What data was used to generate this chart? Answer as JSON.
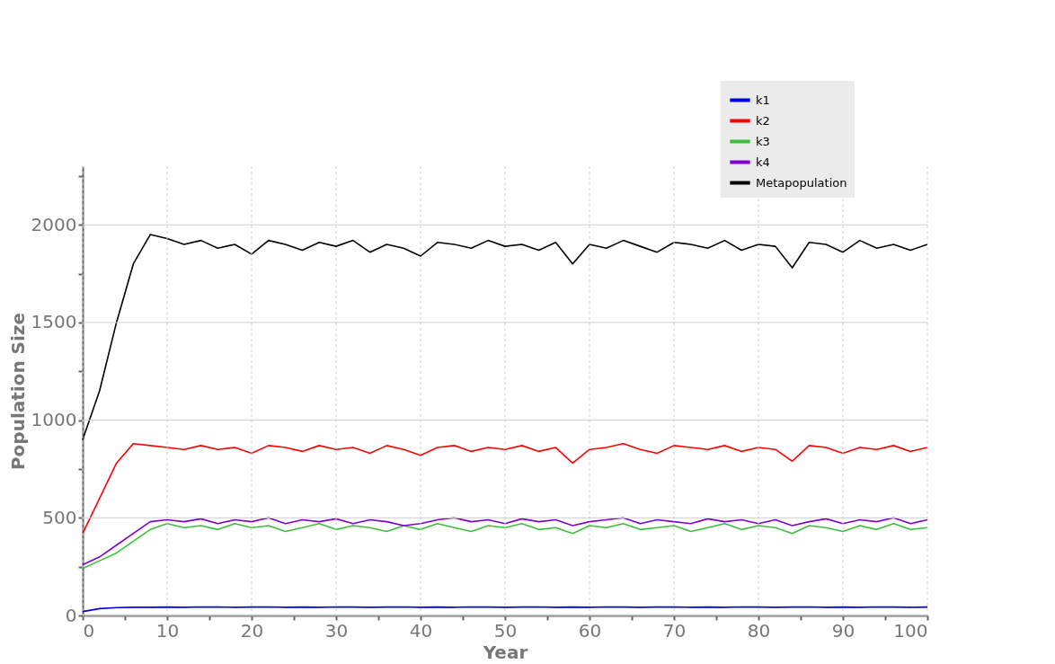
{
  "chart_data": {
    "type": "line",
    "xlabel": "Year",
    "ylabel": "Population Size",
    "x": [
      0,
      2,
      4,
      6,
      8,
      10,
      12,
      14,
      16,
      18,
      20,
      22,
      24,
      26,
      28,
      30,
      32,
      34,
      36,
      38,
      40,
      42,
      44,
      46,
      48,
      50,
      52,
      54,
      56,
      58,
      60,
      62,
      64,
      66,
      68,
      70,
      72,
      74,
      76,
      78,
      80,
      82,
      84,
      86,
      88,
      90,
      92,
      94,
      96,
      98,
      100
    ],
    "xlim": [
      0,
      100
    ],
    "xticks": [
      0,
      {
        "value": 5,
        "label": null
      },
      10,
      {
        "value": 15,
        "label": null
      },
      20,
      {
        "value": 25,
        "label": null
      },
      30,
      {
        "value": 35,
        "label": null
      },
      40,
      {
        "value": 45,
        "label": null
      },
      50,
      {
        "value": 55,
        "label": null
      },
      60,
      {
        "value": 65,
        "label": null
      },
      70,
      {
        "value": 75,
        "label": null
      },
      80,
      {
        "value": 85,
        "label": null
      },
      90,
      {
        "value": 95,
        "label": null
      },
      100
    ],
    "ylim": [
      0,
      2300
    ],
    "yticks": [
      0,
      {
        "value": 250,
        "label": null
      },
      500,
      {
        "value": 750,
        "label": null
      },
      1000,
      {
        "value": 1250,
        "label": null
      },
      1500,
      {
        "value": 1750,
        "label": null
      },
      2000,
      {
        "value": 2250,
        "label": null
      }
    ],
    "grid": true,
    "legend": "top right",
    "line_style": "solid",
    "marker": "none",
    "series": [
      {
        "name": "k1",
        "color": "#0000e0",
        "values": [
          20,
          35,
          40,
          42,
          42,
          43,
          42,
          44,
          43,
          42,
          43,
          44,
          42,
          43,
          42,
          44,
          43,
          42,
          43,
          44,
          42,
          43,
          42,
          44,
          43,
          42,
          43,
          44,
          42,
          43,
          42,
          44,
          43,
          42,
          43,
          44,
          42,
          43,
          42,
          44,
          43,
          42,
          43,
          44,
          42,
          43,
          42,
          44,
          43,
          42,
          43
        ]
      },
      {
        "name": "k2",
        "color": "#ff0000",
        "values": [
          420,
          600,
          780,
          880,
          870,
          860,
          850,
          870,
          850,
          860,
          830,
          870,
          860,
          840,
          870,
          850,
          860,
          830,
          870,
          850,
          820,
          860,
          870,
          840,
          860,
          850,
          870,
          840,
          860,
          780,
          850,
          860,
          880,
          850,
          830,
          870,
          860,
          850,
          870,
          840,
          860,
          850,
          790,
          870,
          860,
          830,
          860,
          850,
          870,
          840,
          860
        ]
      },
      {
        "name": "k3",
        "color": "#3cbf3c",
        "values": [
          240,
          280,
          320,
          380,
          440,
          470,
          450,
          460,
          440,
          470,
          450,
          460,
          430,
          450,
          470,
          440,
          460,
          450,
          430,
          460,
          440,
          470,
          450,
          430,
          460,
          450,
          470,
          440,
          450,
          420,
          460,
          450,
          470,
          440,
          450,
          460,
          430,
          450,
          470,
          440,
          460,
          450,
          420,
          460,
          450,
          430,
          460,
          440,
          470,
          440,
          450
        ]
      },
      {
        "name": "k4",
        "color": "#8000d0",
        "values": [
          260,
          300,
          360,
          420,
          480,
          490,
          480,
          495,
          470,
          490,
          480,
          500,
          470,
          490,
          480,
          495,
          470,
          490,
          480,
          460,
          470,
          490,
          500,
          480,
          490,
          470,
          495,
          480,
          490,
          460,
          480,
          490,
          500,
          470,
          490,
          480,
          470,
          495,
          480,
          490,
          470,
          490,
          460,
          480,
          495,
          470,
          490,
          480,
          500,
          470,
          490
        ]
      },
      {
        "name": "Metapopulation",
        "color": "#000000",
        "values": [
          900,
          1150,
          1500,
          1800,
          1950,
          1930,
          1900,
          1920,
          1880,
          1900,
          1850,
          1920,
          1900,
          1870,
          1910,
          1890,
          1920,
          1860,
          1900,
          1880,
          1840,
          1910,
          1900,
          1880,
          1920,
          1890,
          1900,
          1870,
          1910,
          1800,
          1900,
          1880,
          1920,
          1890,
          1860,
          1910,
          1900,
          1880,
          1920,
          1870,
          1900,
          1890,
          1780,
          1910,
          1900,
          1860,
          1920,
          1880,
          1900,
          1870,
          1900
        ]
      }
    ]
  }
}
